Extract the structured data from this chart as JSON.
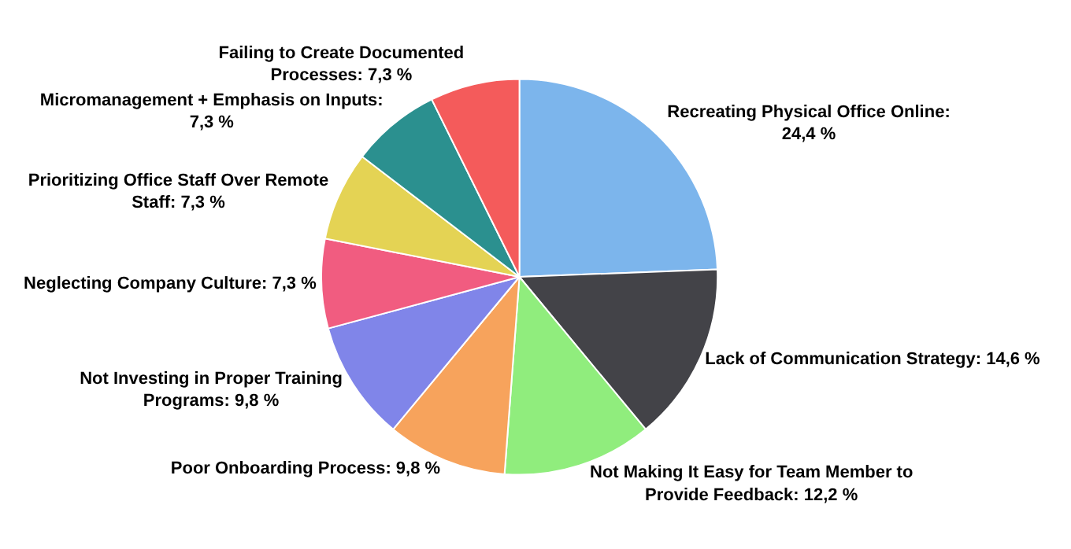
{
  "chart_data": {
    "type": "pie",
    "categories": [
      "Recreating Physical Office Online: 24,4 %",
      "Lack of Communication Strategy: 14,6 %",
      "Not Making It Easy for Team Member to Provide Feedback: 12,2 %",
      "Poor Onboarding Process: 9,8 %",
      "Not Investing in Proper Training Programs: 9,8 %",
      "Neglecting Company Culture: 7,3 %",
      "Prioritizing Office Staff Over Remote Staff: 7,3 %",
      "Micromanagement + Emphasis on Inputs: 7,3 %",
      "Failing to Create Documented Processes: 7,3 %"
    ],
    "values": [
      24.4,
      14.6,
      12.2,
      9.8,
      9.8,
      7.3,
      7.3,
      7.3,
      7.3
    ],
    "colors": [
      "#7cb5ec",
      "#434348",
      "#90ed7d",
      "#f7a35c",
      "#8085e9",
      "#f15c80",
      "#e4d354",
      "#2b908f",
      "#f45b5b"
    ],
    "legend": false
  }
}
